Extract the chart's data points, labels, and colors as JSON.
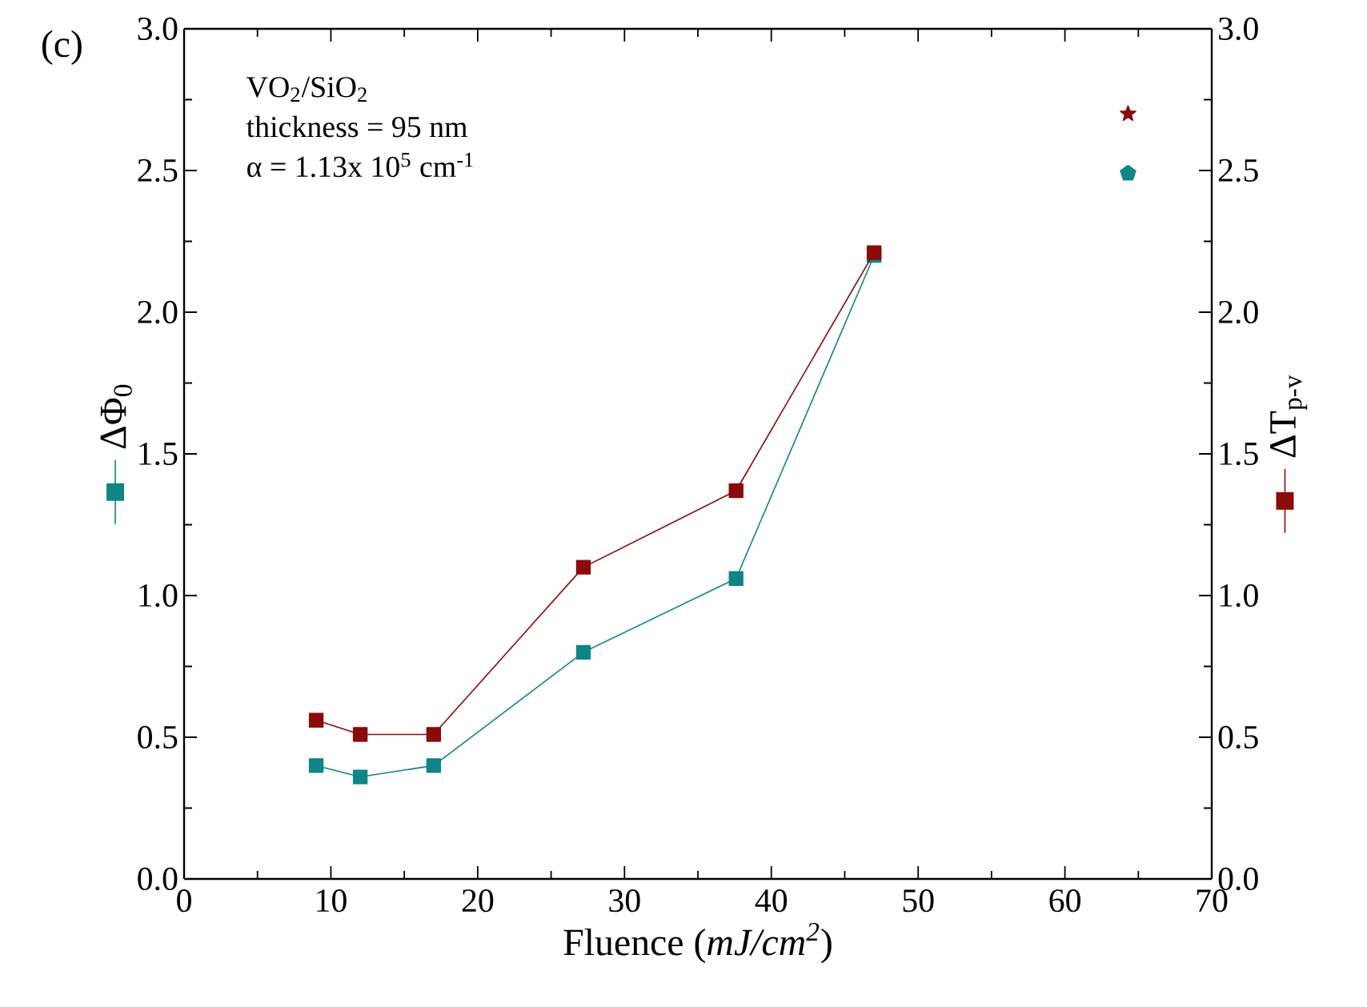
{
  "chart_data": {
    "type": "line",
    "xlabel": "Fluence (*mJ/cm$^{2}$*)",
    "ylabel": "ΔΦ$_{0}$",
    "y2label": "ΔT$_{p-v}$",
    "annotations": [
      "(c)",
      "VO$_{2}$/SiO$_{2}$",
      "thickness = 95 nm",
      "α = 1.13x 10$^{5}$ cm$^{-1}$"
    ],
    "x": [
      9,
      12,
      17,
      27.2,
      37.6,
      47
    ],
    "series": [
      {
        "color": "#0f8585",
        "values": [
          0.4,
          0.36,
          0.4,
          0.8,
          1.06,
          2.2
        ],
        "marker": "square"
      },
      {
        "color": "#8b0a0a",
        "values": [
          0.56,
          0.51,
          0.51,
          1.1,
          1.37,
          2.21
        ],
        "marker": "square",
        "axis": "y2"
      },
      {
        "type": "scatter",
        "x": [
          64.3
        ],
        "color": "#0f8585",
        "values": [
          2.49
        ]
      },
      {
        "type": "scatter",
        "x": [
          64.3
        ],
        "color": "#8b0a0a",
        "values": [
          2.7
        ],
        "marker": "star",
        "axis": "y2"
      }
    ],
    "xlim": [
      0,
      70
    ],
    "xticks": [
      0,
      10,
      20,
      30,
      40,
      50,
      60,
      70
    ],
    "ylim": [
      0,
      3
    ],
    "yticks": [
      {
        "value": 0,
        "label": "0.0"
      },
      {
        "value": 0.5,
        "label": "0.5"
      },
      {
        "value": 1,
        "label": "1.0"
      },
      {
        "value": 1.5,
        "label": "1.5"
      },
      {
        "value": 2,
        "label": "2.0"
      },
      {
        "value": 2.5,
        "label": "2.5"
      },
      {
        "value": 3,
        "label": "3.0"
      }
    ],
    "y2lim": [
      0,
      3
    ],
    "y2ticks": [
      {
        "value": 0,
        "label": "0.0"
      },
      {
        "value": 0.5,
        "label": "0.5"
      },
      {
        "value": 1,
        "label": "1.0"
      },
      {
        "value": 1.5,
        "label": "1.5"
      },
      {
        "value": 2,
        "label": "2.0"
      },
      {
        "value": 2.5,
        "label": "2.5"
      },
      {
        "value": 3,
        "label": "3.0"
      }
    ],
    "grid": false
  }
}
